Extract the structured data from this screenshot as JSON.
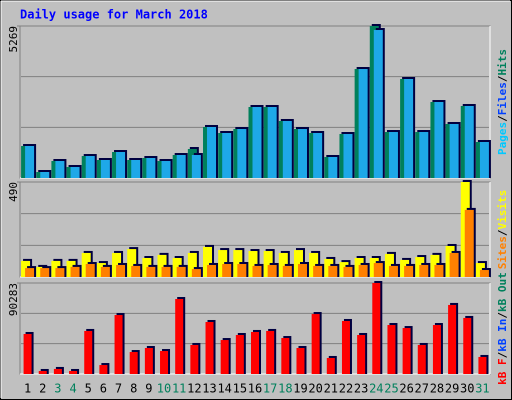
{
  "chart_data": [
    {
      "type": "bar",
      "title": "Daily usage for March 2018",
      "ylim": [
        0,
        5269
      ],
      "yticks": [
        5269
      ],
      "legend": [
        {
          "label": "Pages",
          "color": "#00c8ff"
        },
        {
          "label": "Files",
          "color": "#0040ff"
        },
        {
          "label": "Hits",
          "color": "#00805c"
        }
      ],
      "legend_separator": "/",
      "series": [
        {
          "name": "Hits",
          "color": "#00805c",
          "values": [
            1109,
            208,
            589,
            381,
            762,
            624,
            901,
            624,
            693,
            589,
            797,
            1005,
            1768,
            1560,
            1698,
            2461,
            2461,
            1976,
            1698,
            1560,
            728,
            1525,
            3778,
            5269,
            1594,
            3432,
            1594,
            2634,
            1872,
            2496,
            1248
          ]
        },
        {
          "name": "Files",
          "color": "#1ea8e8",
          "values": [
            1109,
            208,
            589,
            381,
            762,
            624,
            901,
            624,
            693,
            589,
            797,
            797,
            1768,
            1560,
            1698,
            2461,
            2461,
            1976,
            1698,
            1560,
            728,
            1525,
            3778,
            5130,
            1594,
            3432,
            1594,
            2634,
            1872,
            2496,
            1248
          ]
        }
      ]
    },
    {
      "type": "bar",
      "ylim": [
        0,
        490
      ],
      "yticks": [
        490
      ],
      "legend": [
        {
          "label": "Sites",
          "color": "#ff8000"
        },
        {
          "label": "Visits",
          "color": "#ffff00"
        }
      ],
      "legend_separator": "/",
      "series": [
        {
          "name": "Visits",
          "color": "#ffff00",
          "values": [
            83,
            52,
            83,
            83,
            124,
            72,
            124,
            144,
            98,
            114,
            98,
            124,
            155,
            139,
            139,
            134,
            134,
            124,
            139,
            124,
            93,
            77,
            98,
            98,
            119,
            88,
            103,
            114,
            160,
            490,
            72
          ]
        },
        {
          "name": "Sites",
          "color": "#ff8000",
          "values": [
            46,
            46,
            46,
            52,
            67,
            52,
            62,
            57,
            52,
            52,
            52,
            41,
            62,
            67,
            67,
            57,
            62,
            57,
            67,
            57,
            57,
            52,
            62,
            72,
            57,
            57,
            62,
            62,
            124,
            346,
            36
          ]
        }
      ]
    },
    {
      "type": "bar",
      "ylim": [
        0,
        90283
      ],
      "yticks": [
        90283
      ],
      "legend": [
        {
          "label": "kB F",
          "color": "#ff0000"
        },
        {
          "label": "kB In",
          "color": "#0040ff"
        },
        {
          "label": "kB Out",
          "color": "#00805c"
        }
      ],
      "legend_separator": "/",
      "categories": [
        "1",
        "2",
        "3",
        "4",
        "5",
        "6",
        "7",
        "8",
        "9",
        "10",
        "11",
        "12",
        "13",
        "14",
        "15",
        "16",
        "17",
        "18",
        "19",
        "20",
        "21",
        "22",
        "23",
        "24",
        "25",
        "26",
        "27",
        "28",
        "29",
        "30",
        "31"
      ],
      "category_colors": [
        "#000000",
        "#000000",
        "#00805c",
        "#00805c",
        "#000000",
        "#000000",
        "#000000",
        "#000000",
        "#000000",
        "#00805c",
        "#00805c",
        "#000000",
        "#000000",
        "#000000",
        "#000000",
        "#000000",
        "#00805c",
        "#00805c",
        "#000000",
        "#000000",
        "#000000",
        "#000000",
        "#000000",
        "#00805c",
        "#00805c",
        "#000000",
        "#000000",
        "#000000",
        "#000000",
        "#000000",
        "#00805c"
      ],
      "series": [
        {
          "name": "kB F",
          "color": "#ff0000",
          "values": [
            39700,
            3000,
            5000,
            3000,
            42700,
            8900,
            58500,
            21800,
            25800,
            22800,
            74400,
            28800,
            51600,
            33700,
            38700,
            41700,
            42700,
            35700,
            25800,
            59500,
            15900,
            52600,
            38700,
            90283,
            48600,
            45600,
            28800,
            48600,
            68500,
            55600,
            16900
          ]
        }
      ]
    }
  ]
}
